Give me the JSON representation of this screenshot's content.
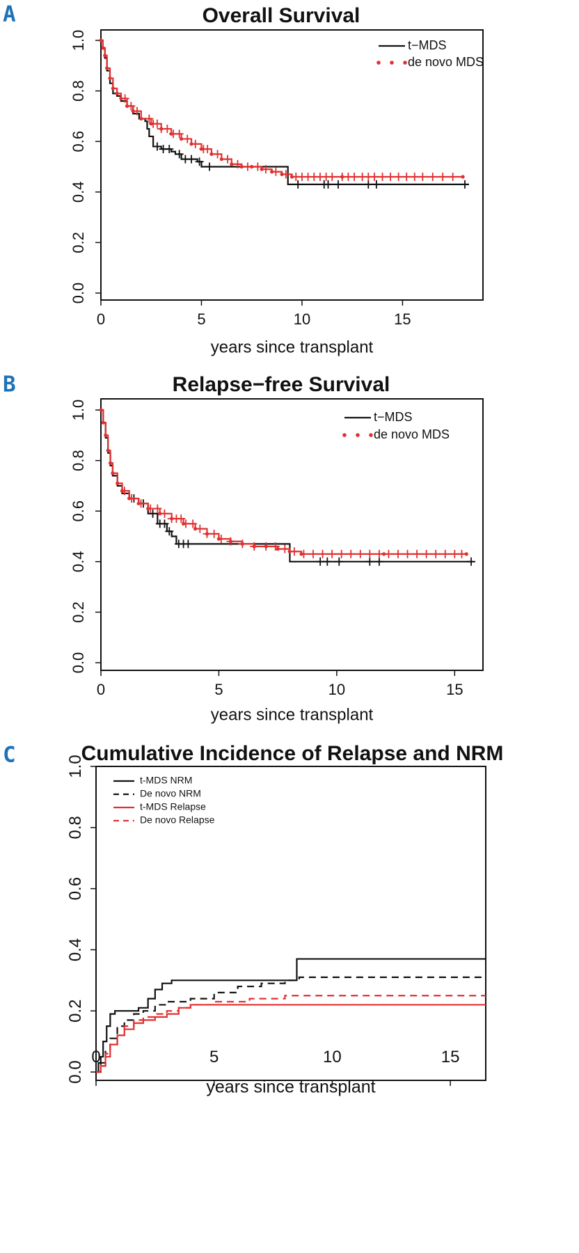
{
  "chart_data": [
    {
      "type": "line",
      "subtype": "kaplan-meier",
      "panel_label": "A",
      "title": "Overall Survival",
      "xlabel": "years since transplant",
      "ylabel": "",
      "xlim": [
        0,
        19
      ],
      "ylim": [
        0,
        1.05
      ],
      "xticks": [
        0,
        5,
        10,
        15
      ],
      "xtick_labels": [
        "0",
        "5",
        "10",
        "15"
      ],
      "yticks": [
        0.0,
        0.2,
        0.4,
        0.6,
        0.8,
        1.0
      ],
      "ytick_labels": [
        "0.0",
        "0.2",
        "0.4",
        "0.6",
        "0.8",
        "1.0"
      ],
      "grid": false,
      "legend_position": "top-right",
      "series": [
        {
          "name": "t−MDS",
          "color": "#111111",
          "style": "solid",
          "x": [
            0,
            0.1,
            0.2,
            0.3,
            0.45,
            0.6,
            0.8,
            1.0,
            1.3,
            1.6,
            1.9,
            2.2,
            2.3,
            2.4,
            2.6,
            3.0,
            3.5,
            3.7,
            4.0,
            4.8,
            5.0,
            6.0,
            7.0,
            8.0,
            9.2,
            9.3,
            12.0,
            15.0,
            18.3
          ],
          "y": [
            1.0,
            0.97,
            0.93,
            0.88,
            0.83,
            0.79,
            0.78,
            0.76,
            0.74,
            0.71,
            0.69,
            0.68,
            0.65,
            0.62,
            0.58,
            0.57,
            0.56,
            0.55,
            0.53,
            0.52,
            0.5,
            0.5,
            0.5,
            0.5,
            0.5,
            0.43,
            0.43,
            0.43,
            0.43
          ],
          "censor_x": [
            2.8,
            3.1,
            3.4,
            3.9,
            4.2,
            4.5,
            4.9,
            5.4,
            9.8,
            11.1,
            11.3,
            11.8,
            13.3,
            13.7,
            18.1
          ]
        },
        {
          "name": "de novo MDS",
          "color": "#e03030",
          "style": "dotted",
          "x": [
            0,
            0.1,
            0.2,
            0.3,
            0.45,
            0.6,
            0.8,
            1.0,
            1.3,
            1.6,
            2.0,
            2.5,
            3.0,
            3.5,
            4.0,
            4.5,
            5.0,
            5.5,
            6.0,
            6.5,
            7.0,
            7.5,
            8.0,
            8.5,
            9.0,
            9.5,
            12.0,
            18.0
          ],
          "y": [
            1.0,
            0.97,
            0.94,
            0.89,
            0.85,
            0.81,
            0.79,
            0.77,
            0.74,
            0.72,
            0.69,
            0.67,
            0.65,
            0.63,
            0.61,
            0.59,
            0.57,
            0.55,
            0.53,
            0.51,
            0.5,
            0.5,
            0.49,
            0.48,
            0.47,
            0.46,
            0.46,
            0.46
          ],
          "censor_x": [
            1.2,
            1.5,
            1.8,
            2.4,
            2.6,
            2.8,
            3.0,
            3.3,
            3.6,
            3.9,
            4.3,
            4.7,
            5.1,
            5.3,
            5.8,
            6.3,
            6.8,
            7.3,
            7.8,
            8.2,
            8.7,
            9.2,
            9.7,
            10.0,
            10.3,
            10.6,
            10.9,
            11.2,
            11.5,
            12.0,
            12.3,
            12.6,
            13.0,
            13.3,
            13.6,
            14.0,
            14.4,
            14.8,
            15.2,
            15.6,
            16.0,
            16.5,
            17.0,
            17.5
          ]
        }
      ]
    },
    {
      "type": "line",
      "subtype": "kaplan-meier",
      "panel_label": "B",
      "title": "Relapse−free Survival",
      "xlabel": "years since transplant",
      "ylabel": "",
      "xlim": [
        0,
        16.2
      ],
      "ylim": [
        0,
        1.05
      ],
      "xticks": [
        0,
        5,
        10,
        15
      ],
      "xtick_labels": [
        "0",
        "5",
        "10",
        "15"
      ],
      "yticks": [
        0.0,
        0.2,
        0.4,
        0.6,
        0.8,
        1.0
      ],
      "ytick_labels": [
        "0.0",
        "0.2",
        "0.4",
        "0.6",
        "0.8",
        "1.0"
      ],
      "grid": false,
      "legend_position": "top-right",
      "series": [
        {
          "name": "t−MDS",
          "color": "#111111",
          "style": "solid",
          "x": [
            0,
            0.1,
            0.2,
            0.3,
            0.4,
            0.5,
            0.7,
            0.9,
            1.2,
            1.6,
            2.0,
            2.4,
            2.8,
            3.0,
            3.2,
            4.0,
            6.0,
            8.0,
            8.01,
            12.0,
            15.8
          ],
          "y": [
            1.0,
            0.95,
            0.89,
            0.83,
            0.78,
            0.74,
            0.7,
            0.67,
            0.65,
            0.63,
            0.59,
            0.55,
            0.52,
            0.5,
            0.47,
            0.47,
            0.47,
            0.47,
            0.4,
            0.4,
            0.4
          ],
          "censor_x": [
            1.4,
            1.8,
            2.2,
            2.5,
            2.7,
            2.9,
            3.3,
            3.5,
            3.7,
            9.3,
            9.6,
            10.1,
            11.4,
            11.8,
            15.7
          ]
        },
        {
          "name": "de novo MDS",
          "color": "#e03030",
          "style": "dotted",
          "x": [
            0,
            0.1,
            0.2,
            0.3,
            0.4,
            0.5,
            0.7,
            0.9,
            1.2,
            1.6,
            2.0,
            2.5,
            3.0,
            3.5,
            4.0,
            4.5,
            5.0,
            5.5,
            6.0,
            6.5,
            7.0,
            7.5,
            8.0,
            8.5,
            12.0,
            15.5
          ],
          "y": [
            1.0,
            0.95,
            0.9,
            0.84,
            0.79,
            0.75,
            0.71,
            0.68,
            0.65,
            0.63,
            0.61,
            0.59,
            0.57,
            0.55,
            0.53,
            0.51,
            0.49,
            0.48,
            0.47,
            0.46,
            0.46,
            0.45,
            0.44,
            0.43,
            0.43,
            0.43
          ],
          "censor_x": [
            1.0,
            1.3,
            1.7,
            2.1,
            2.4,
            2.7,
            3.0,
            3.2,
            3.4,
            3.6,
            3.9,
            4.2,
            4.5,
            4.8,
            5.1,
            5.5,
            6.0,
            6.5,
            7.0,
            7.4,
            7.8,
            8.2,
            8.6,
            9.0,
            9.4,
            9.8,
            10.2,
            10.6,
            11.0,
            11.4,
            11.8,
            12.2,
            12.6,
            13.0,
            13.4,
            13.8,
            14.2,
            14.6,
            15.0,
            15.3
          ]
        }
      ]
    },
    {
      "type": "line",
      "subtype": "cumulative-incidence",
      "panel_label": "C",
      "title": "Cumulative Incidence of Relapse and NRM",
      "xlabel": "years since transplant",
      "ylabel": "",
      "xlim": [
        0,
        16.5
      ],
      "ylim": [
        0,
        1.0
      ],
      "xticks": [
        0,
        5,
        10,
        15
      ],
      "xtick_labels": [
        "0",
        "5",
        "10",
        "15"
      ],
      "yticks": [
        0.0,
        0.2,
        0.4,
        0.6,
        0.8,
        1.0
      ],
      "ytick_labels": [
        "0.0",
        "0.2",
        "0.4",
        "0.6",
        "0.8",
        "1.0"
      ],
      "grid": false,
      "legend_position": "top-left",
      "series": [
        {
          "name": "t-MDS NRM",
          "color": "#111111",
          "style": "solid",
          "x": [
            0,
            0.1,
            0.2,
            0.3,
            0.45,
            0.6,
            0.8,
            1.2,
            1.8,
            2.2,
            2.5,
            2.8,
            3.2,
            5.0,
            8.0,
            8.5,
            16.5
          ],
          "y": [
            0,
            0.03,
            0.05,
            0.1,
            0.15,
            0.19,
            0.2,
            0.2,
            0.21,
            0.24,
            0.27,
            0.29,
            0.3,
            0.3,
            0.3,
            0.37,
            0.37
          ]
        },
        {
          "name": "De novo NRM",
          "color": "#111111",
          "style": "dashed",
          "x": [
            0,
            0.2,
            0.4,
            0.6,
            0.9,
            1.2,
            1.6,
            2.0,
            2.5,
            3.0,
            4.0,
            5.0,
            6.0,
            7.0,
            8.0,
            8.6,
            16.5
          ],
          "y": [
            0,
            0.03,
            0.07,
            0.11,
            0.15,
            0.17,
            0.19,
            0.2,
            0.22,
            0.23,
            0.24,
            0.26,
            0.28,
            0.29,
            0.3,
            0.31,
            0.31
          ]
        },
        {
          "name": "t-MDS Relapse",
          "color": "#e03030",
          "style": "solid",
          "x": [
            0,
            0.2,
            0.4,
            0.6,
            0.9,
            1.2,
            1.6,
            2.0,
            2.5,
            3.0,
            3.5,
            4.0,
            16.5
          ],
          "y": [
            0,
            0.02,
            0.05,
            0.09,
            0.12,
            0.14,
            0.16,
            0.17,
            0.18,
            0.19,
            0.21,
            0.22,
            0.22
          ]
        },
        {
          "name": "De novo Relapse",
          "color": "#e03030",
          "style": "dashed",
          "x": [
            0,
            0.2,
            0.4,
            0.6,
            0.9,
            1.2,
            1.6,
            2.0,
            2.5,
            3.0,
            3.5,
            4.0,
            5.0,
            6.5,
            8.0,
            16.5
          ],
          "y": [
            0,
            0.02,
            0.06,
            0.09,
            0.12,
            0.15,
            0.17,
            0.18,
            0.19,
            0.2,
            0.21,
            0.22,
            0.23,
            0.24,
            0.25,
            0.25
          ]
        }
      ]
    }
  ]
}
